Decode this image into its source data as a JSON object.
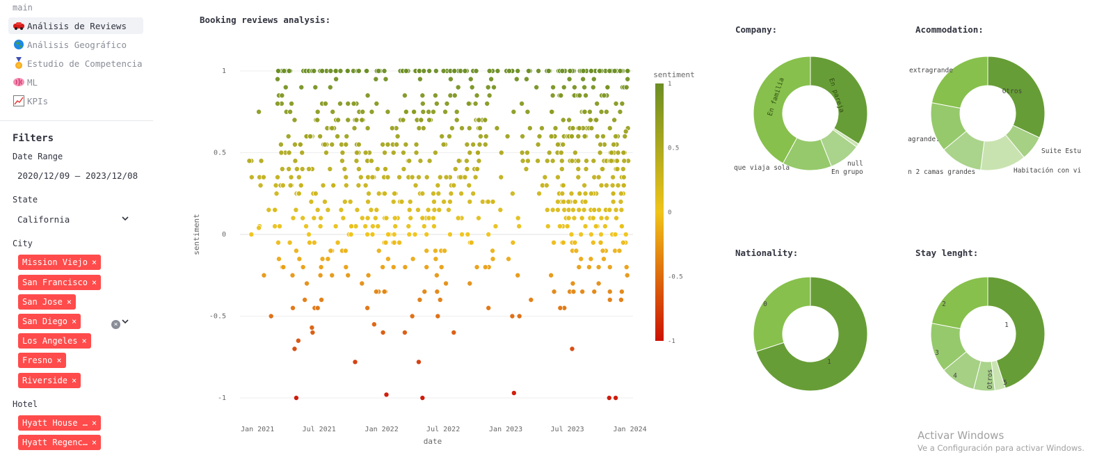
{
  "sidebar": {
    "nav_header": "main",
    "nav_items": [
      {
        "label": "Análisis de Reviews",
        "icon": "car-icon"
      },
      {
        "label": "Análisis Geográfico",
        "icon": "globe-icon"
      },
      {
        "label": "Estudio de Competencia",
        "icon": "medal-icon"
      },
      {
        "label": "ML",
        "icon": "brain-icon"
      },
      {
        "label": "KPIs",
        "icon": "chart-icon"
      }
    ],
    "filters_title": "Filters",
    "date_range": {
      "label": "Date Range",
      "value": "2020/12/09 – 2023/12/08"
    },
    "state": {
      "label": "State",
      "value": "California"
    },
    "city": {
      "label": "City",
      "selected": [
        "Mission Viejo",
        "San Francisco",
        "San Jose",
        "San Diego",
        "Los Angeles",
        "Fresno",
        "Riverside"
      ]
    },
    "hotel": {
      "label": "Hotel",
      "selected": [
        "Hyatt House …",
        "Hyatt Regenc…"
      ]
    }
  },
  "main": {
    "title": "Booking reviews analysis:"
  },
  "chart_data": [
    {
      "type": "scatter",
      "title": "",
      "xlabel": "date",
      "ylabel": "sentiment",
      "x_ticks": [
        "Jan 2021",
        "Jul 2021",
        "Jan 2022",
        "Jul 2022",
        "Jan 2023",
        "Jul 2023",
        "Jan 2024"
      ],
      "y_ticks": [
        "1",
        "0.5",
        "0",
        "-0.5",
        "-1"
      ],
      "ylim": [
        -1,
        1
      ],
      "colorbar": {
        "title": "sentiment",
        "ticks": [
          "1",
          "0.5",
          "0",
          "-0.5",
          "-1"
        ],
        "colors": [
          "#6b8e23",
          "#f0c419",
          "#cc1100"
        ]
      },
      "point_count_estimate": 900,
      "points_note_excluded": true,
      "points": [
        [
          "2020-12-15",
          0.35
        ],
        [
          "2021-01-05",
          0.04
        ],
        [
          "2021-01-20",
          -0.25
        ],
        [
          "2021-02-10",
          -0.5
        ],
        [
          "2021-03-01",
          0.8
        ],
        [
          "2021-03-20",
          1.0
        ],
        [
          "2021-04-15",
          -0.45
        ],
        [
          "2021-04-20",
          -0.7
        ],
        [
          "2021-05-01",
          -0.65
        ],
        [
          "2021-04-25",
          -1.0
        ],
        [
          "2021-06-10",
          -0.57
        ],
        [
          "2021-06-12",
          -0.6
        ],
        [
          "2021-06-20",
          0.9
        ],
        [
          "2021-07-10",
          1.0
        ],
        [
          "2021-09-01",
          0.8
        ],
        [
          "2021-10-15",
          -0.78
        ],
        [
          "2021-11-20",
          -0.45
        ],
        [
          "2021-12-10",
          -0.55
        ],
        [
          "2022-01-05",
          -0.6
        ],
        [
          "2022-01-15",
          -0.98
        ],
        [
          "2022-03-10",
          -0.6
        ],
        [
          "2022-04-01",
          -0.5
        ],
        [
          "2022-04-20",
          -0.78
        ],
        [
          "2022-05-01",
          -1.0
        ],
        [
          "2022-06-15",
          -0.5
        ],
        [
          "2022-08-01",
          -0.6
        ],
        [
          "2023-01-20",
          -0.5
        ],
        [
          "2023-02-10",
          -0.5
        ],
        [
          "2023-01-25",
          -0.97
        ],
        [
          "2023-07-15",
          -0.7
        ],
        [
          "2023-11-01",
          -1.0
        ],
        [
          "2023-11-20",
          -1.0
        ],
        [
          "2023-12-20",
          0.63
        ],
        [
          "2023-12-25",
          1.0
        ]
      ]
    },
    {
      "type": "pie",
      "title": "Company:",
      "hole": true,
      "labels": [
        "En pareja",
        "null",
        "En grupo",
        "que viaja sola",
        "En familia"
      ],
      "values": [
        34,
        1,
        9,
        14,
        42
      ],
      "colors": [
        "#679d36",
        "#c9e3b0",
        "#aad38b",
        "#96c96b",
        "#87c04c"
      ]
    },
    {
      "type": "pie",
      "title": "Acommodation:",
      "hole": true,
      "labels": [
        "Otros",
        "Suite Estu",
        "Habitación con vi",
        "n 2 camas grandes",
        "agrande.",
        "extragrande"
      ],
      "values": [
        32,
        7,
        13,
        12,
        14,
        22
      ],
      "colors": [
        "#679d36",
        "#a6d084",
        "#c9e3b0",
        "#aad38b",
        "#96c96b",
        "#87c04c"
      ]
    },
    {
      "type": "pie",
      "title": "Nationality:",
      "hole": true,
      "labels": [
        "1",
        "0"
      ],
      "values": [
        70,
        30
      ],
      "colors": [
        "#679d36",
        "#87c04c"
      ]
    },
    {
      "type": "pie",
      "title": "Stay lenght:",
      "hole": true,
      "labels": [
        "1",
        "5",
        "Otros",
        "4",
        "3",
        "2"
      ],
      "values": [
        45,
        3,
        6,
        10,
        14,
        22
      ],
      "colors": [
        "#679d36",
        "#c9e3b0",
        "#aad38b",
        "#a6d084",
        "#96c96b",
        "#87c04c"
      ]
    }
  ],
  "watermark": {
    "line1": "Activar Windows",
    "line2": "Ve a Configuración para activar Windows."
  }
}
